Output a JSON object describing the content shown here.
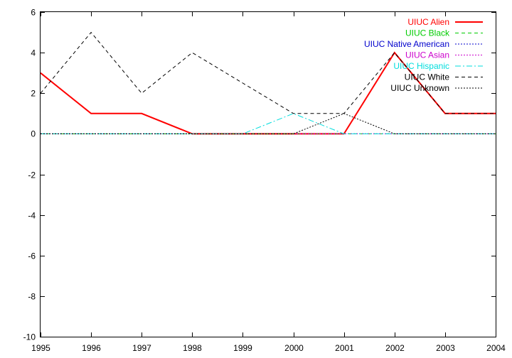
{
  "chart_data": {
    "type": "line",
    "title": "",
    "xlabel": "",
    "ylabel": "",
    "x": [
      1995,
      1996,
      1997,
      1998,
      1999,
      2000,
      2001,
      2002,
      2003,
      2004
    ],
    "xlim": [
      1995,
      2004
    ],
    "ylim": [
      -10,
      6
    ],
    "x_ticks": [
      1995,
      1996,
      1997,
      1998,
      1999,
      2000,
      2001,
      2002,
      2003,
      2004
    ],
    "y_ticks": [
      -10,
      -8,
      -6,
      -4,
      -2,
      0,
      2,
      4,
      6
    ],
    "grid": false,
    "legend_position": "top-right",
    "series": [
      {
        "name": "UIUC Alien",
        "color": "#ff0000",
        "dash": "solid",
        "values": [
          3,
          1,
          1,
          0,
          0,
          0,
          0,
          4,
          1,
          1
        ]
      },
      {
        "name": "UIUC Black",
        "color": "#00cc00",
        "dash": "dashed",
        "values": [
          0,
          0,
          0,
          0,
          0,
          0,
          0,
          0,
          0,
          0
        ]
      },
      {
        "name": "UIUC Native American",
        "color": "#0000cc",
        "dash": "dotted",
        "values": [
          0,
          0,
          0,
          0,
          0,
          0,
          0,
          0,
          0,
          0
        ]
      },
      {
        "name": "UIUC Asian",
        "color": "#cc00cc",
        "dash": "dotted",
        "values": [
          0,
          0,
          0,
          0,
          0,
          0,
          0,
          0,
          0,
          0
        ]
      },
      {
        "name": "UIUC Hispanic",
        "color": "#00dddd",
        "dash": "dashdot",
        "values": [
          0,
          0,
          0,
          0,
          0,
          1,
          0,
          0,
          0,
          0
        ]
      },
      {
        "name": "UIUC White",
        "color": "#000000",
        "dash": "dashed",
        "values": [
          2,
          5,
          2,
          4,
          2.5,
          1,
          1,
          4,
          1,
          1
        ]
      },
      {
        "name": "UIUC Unknown",
        "color": "#000000",
        "dash": "dotted",
        "values": [
          0,
          0,
          0,
          0,
          0,
          0,
          1,
          0,
          0,
          0
        ]
      }
    ]
  }
}
